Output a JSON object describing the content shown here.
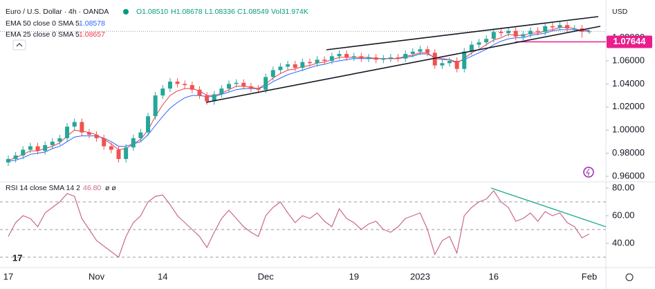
{
  "chart_data": [
    {
      "type": "candlestick",
      "title": "Euro / U.S. Dollar · 4h · OANDA",
      "header": [
        "O1.08510",
        "H1.08678",
        "L1.08336",
        "C1.08549",
        "Vol31.974K"
      ],
      "header_color": "#089981",
      "y_unit": "USD",
      "categories": [
        "17",
        null,
        null,
        null,
        null,
        null,
        null,
        null,
        null,
        null,
        null,
        null,
        "Nov",
        null,
        null,
        null,
        null,
        null,
        null,
        null,
        null,
        "14",
        null,
        null,
        null,
        null,
        null,
        null,
        null,
        null,
        null,
        null,
        null,
        null,
        null,
        "Dec",
        null,
        null,
        null,
        null,
        null,
        null,
        null,
        null,
        null,
        null,
        null,
        "19",
        null,
        null,
        null,
        null,
        null,
        null,
        null,
        null,
        "2023",
        null,
        null,
        null,
        null,
        null,
        null,
        null,
        null,
        null,
        "16",
        null,
        null,
        null,
        null,
        null,
        null,
        null,
        null,
        null,
        null,
        null,
        null,
        "Feb"
      ],
      "open": [
        0.972,
        0.975,
        0.978,
        0.983,
        0.986,
        0.982,
        0.987,
        0.99,
        0.993,
        1.003,
        1.007,
        0.998,
        0.996,
        0.993,
        0.986,
        0.983,
        0.975,
        0.985,
        0.993,
        0.998,
        1.012,
        1.03,
        1.036,
        1.042,
        1.04,
        1.039,
        1.035,
        1.03,
        1.025,
        1.031,
        1.036,
        1.04,
        1.041,
        1.038,
        1.036,
        1.035,
        1.046,
        1.052,
        1.055,
        1.057,
        1.054,
        1.059,
        1.058,
        1.061,
        1.06,
        1.064,
        1.066,
        1.063,
        1.064,
        1.062,
        1.063,
        1.061,
        1.062,
        1.063,
        1.062,
        1.066,
        1.068,
        1.07,
        1.067,
        1.056,
        1.058,
        1.06,
        1.053,
        1.068,
        1.074,
        1.076,
        1.079,
        1.085,
        1.084,
        1.086,
        1.081,
        1.083,
        1.086,
        1.085,
        1.09,
        1.089,
        1.091,
        1.088,
        1.088,
        1.0851
      ],
      "high": [
        0.978,
        0.981,
        0.986,
        0.989,
        0.989,
        0.99,
        0.993,
        0.996,
        1.006,
        1.01,
        1.01,
        1.001,
        0.999,
        0.996,
        0.989,
        0.986,
        0.988,
        0.996,
        1.001,
        1.015,
        1.033,
        1.039,
        1.045,
        1.045,
        1.043,
        1.042,
        1.038,
        1.033,
        1.034,
        1.039,
        1.043,
        1.044,
        1.044,
        1.041,
        1.039,
        1.049,
        1.055,
        1.058,
        1.06,
        1.06,
        1.062,
        1.062,
        1.064,
        1.064,
        1.067,
        1.069,
        1.069,
        1.067,
        1.067,
        1.066,
        1.066,
        1.065,
        1.066,
        1.066,
        1.069,
        1.071,
        1.073,
        1.073,
        1.07,
        1.061,
        1.063,
        1.063,
        1.071,
        1.077,
        1.079,
        1.082,
        1.088,
        1.088,
        1.089,
        1.089,
        1.086,
        1.089,
        1.089,
        1.093,
        1.093,
        1.094,
        1.094,
        1.091,
        1.091,
        1.08678
      ],
      "low": [
        0.969,
        0.972,
        0.975,
        0.98,
        0.979,
        0.979,
        0.984,
        0.987,
        0.99,
        1.0,
        0.995,
        0.993,
        0.99,
        0.983,
        0.98,
        0.972,
        0.972,
        0.982,
        0.99,
        0.995,
        1.009,
        1.027,
        1.033,
        1.037,
        1.036,
        1.032,
        1.027,
        1.022,
        1.022,
        1.028,
        1.033,
        1.037,
        1.035,
        1.033,
        1.032,
        1.032,
        1.043,
        1.049,
        1.052,
        1.051,
        1.051,
        1.055,
        1.055,
        1.057,
        1.057,
        1.061,
        1.06,
        1.06,
        1.059,
        1.059,
        1.058,
        1.058,
        1.059,
        1.059,
        1.059,
        1.063,
        1.065,
        1.064,
        1.053,
        1.053,
        1.055,
        1.05,
        1.05,
        1.065,
        1.071,
        1.073,
        1.076,
        1.081,
        1.081,
        1.078,
        1.078,
        1.08,
        1.082,
        1.082,
        1.086,
        1.086,
        1.085,
        1.085,
        1.08,
        1.08336
      ],
      "close": [
        0.975,
        0.978,
        0.983,
        0.986,
        0.982,
        0.987,
        0.99,
        0.993,
        1.003,
        1.007,
        0.998,
        0.996,
        0.993,
        0.986,
        0.983,
        0.975,
        0.985,
        0.993,
        0.998,
        1.012,
        1.03,
        1.036,
        1.042,
        1.04,
        1.039,
        1.035,
        1.03,
        1.025,
        1.031,
        1.036,
        1.04,
        1.041,
        1.038,
        1.036,
        1.035,
        1.046,
        1.052,
        1.055,
        1.057,
        1.054,
        1.059,
        1.058,
        1.061,
        1.06,
        1.064,
        1.066,
        1.063,
        1.064,
        1.062,
        1.063,
        1.061,
        1.062,
        1.063,
        1.062,
        1.066,
        1.068,
        1.07,
        1.067,
        1.056,
        1.058,
        1.06,
        1.053,
        1.068,
        1.074,
        1.076,
        1.079,
        1.085,
        1.084,
        1.086,
        1.081,
        1.083,
        1.086,
        1.085,
        1.09,
        1.089,
        1.091,
        1.088,
        1.088,
        1.0851,
        1.08549
      ],
      "up_color": "#26a69a",
      "down_color": "#ef5350",
      "series": [
        {
          "name": "EMA 50 close 0 SMA 5",
          "last_value": 1.08578,
          "color": "#2962ff",
          "values": [
            0.973,
            0.974,
            0.976,
            0.979,
            0.98,
            0.981,
            0.984,
            0.986,
            0.99,
            0.994,
            0.995,
            0.995,
            0.995,
            0.993,
            0.99,
            0.986,
            0.986,
            0.988,
            0.99,
            0.996,
            1.004,
            1.012,
            1.019,
            1.024,
            1.028,
            1.03,
            1.03,
            1.029,
            1.029,
            1.031,
            1.033,
            1.035,
            1.036,
            1.036,
            1.036,
            1.038,
            1.042,
            1.045,
            1.048,
            1.05,
            1.052,
            1.054,
            1.056,
            1.057,
            1.059,
            1.06,
            1.061,
            1.062,
            1.062,
            1.062,
            1.062,
            1.062,
            1.062,
            1.062,
            1.063,
            1.064,
            1.066,
            1.066,
            1.063,
            1.062,
            1.061,
            1.059,
            1.061,
            1.064,
            1.067,
            1.07,
            1.074,
            1.077,
            1.079,
            1.08,
            1.08,
            1.082,
            1.083,
            1.084,
            1.086,
            1.087,
            1.087,
            1.087,
            1.086,
            1.08578
          ]
        },
        {
          "name": "EMA 25 close 0 SMA 5",
          "last_value": 1.08657,
          "color": "#f23645",
          "values": [
            0.974,
            0.976,
            0.979,
            0.982,
            0.982,
            0.984,
            0.986,
            0.989,
            0.995,
            1.0,
            0.999,
            0.998,
            0.996,
            0.992,
            0.988,
            0.983,
            0.984,
            0.988,
            0.992,
            1.0,
            1.012,
            1.022,
            1.03,
            1.034,
            1.036,
            1.036,
            1.034,
            1.03,
            1.03,
            1.032,
            1.035,
            1.038,
            1.038,
            1.037,
            1.036,
            1.04,
            1.045,
            1.049,
            1.052,
            1.053,
            1.055,
            1.056,
            1.058,
            1.059,
            1.061,
            1.063,
            1.063,
            1.063,
            1.063,
            1.063,
            1.062,
            1.062,
            1.062,
            1.062,
            1.064,
            1.065,
            1.067,
            1.067,
            1.062,
            1.061,
            1.061,
            1.058,
            1.062,
            1.067,
            1.07,
            1.074,
            1.078,
            1.08,
            1.083,
            1.082,
            1.082,
            1.084,
            1.084,
            1.086,
            1.087,
            1.089,
            1.089,
            1.088,
            1.086,
            1.08657
          ]
        }
      ],
      "marker": {
        "value": 1.07644,
        "color": "#e91e8c"
      },
      "ylim": [
        0.9558,
        1.1127
      ],
      "yticks": [
        {
          "value": 0.96,
          "label": "0.96000"
        },
        {
          "value": 0.98,
          "label": "0.98000"
        },
        {
          "value": 1.0,
          "label": "1.00000"
        },
        {
          "value": 1.02,
          "label": "1.02000"
        },
        {
          "value": 1.04,
          "label": "1.04000"
        },
        {
          "value": 1.06,
          "label": "1.06000"
        },
        {
          "value": 1.08,
          "label": "1.08000"
        }
      ],
      "grid": false
    },
    {
      "type": "line",
      "title": "RSI 14 close SMA 14 2",
      "last_label": "46.80",
      "extra": "ø ø",
      "color": "#c9678f",
      "values": [
        45,
        55,
        60,
        58,
        52,
        62,
        66,
        70,
        76,
        74,
        58,
        50,
        42,
        38,
        34,
        30,
        45,
        55,
        60,
        70,
        74,
        75,
        68,
        60,
        55,
        50,
        45,
        37,
        48,
        58,
        64,
        58,
        52,
        48,
        45,
        60,
        66,
        70,
        62,
        55,
        60,
        58,
        62,
        56,
        52,
        65,
        58,
        55,
        50,
        54,
        56,
        50,
        48,
        52,
        58,
        60,
        62,
        50,
        32,
        42,
        45,
        33,
        60,
        66,
        70,
        72,
        78,
        70,
        66,
        56,
        58,
        62,
        56,
        63,
        60,
        62,
        55,
        52,
        44,
        46.8
      ],
      "levels": [
        70,
        50,
        30
      ],
      "ylim": [
        23.5,
        83.5
      ],
      "yticks": [
        {
          "value": 80,
          "label": "80.00"
        },
        {
          "value": 60,
          "label": "60.00"
        },
        {
          "value": 40,
          "label": "40.00"
        }
      ],
      "grid": false
    }
  ]
}
